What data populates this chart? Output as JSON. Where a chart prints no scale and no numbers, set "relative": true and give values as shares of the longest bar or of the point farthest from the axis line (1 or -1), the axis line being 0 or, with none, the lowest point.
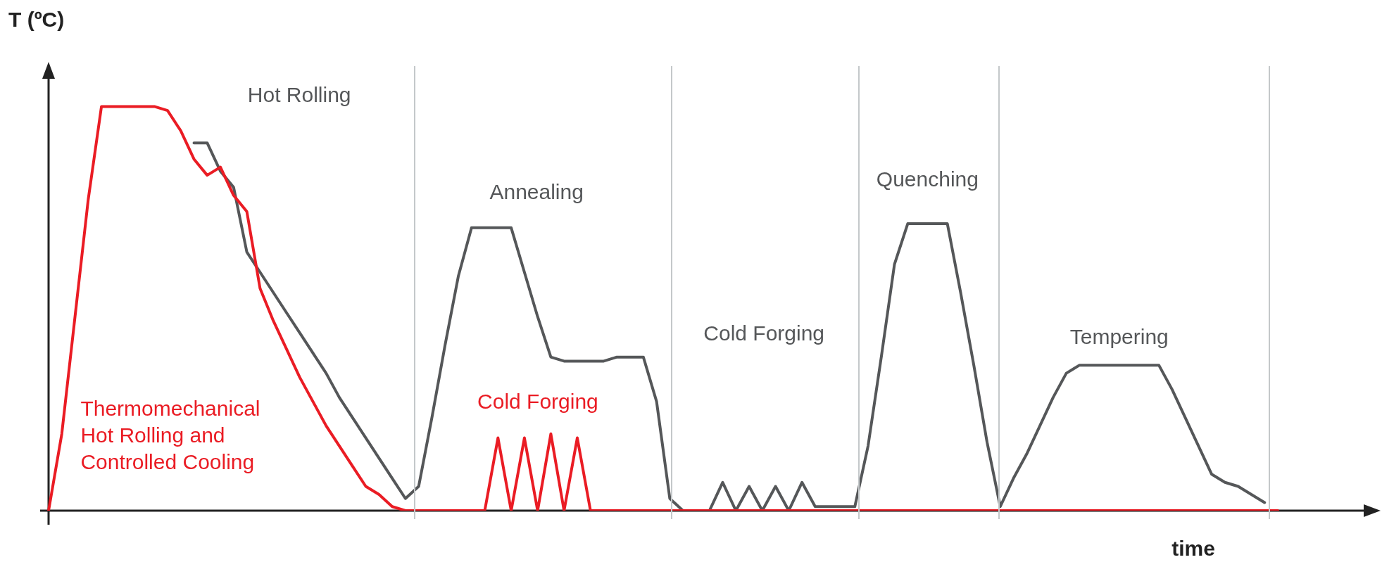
{
  "chart_data": {
    "type": "line",
    "relative": true,
    "xlabel": "time",
    "ylabel": "T (ºC)",
    "legend": false,
    "marker": "none",
    "line_style": "solid",
    "categories": [
      null,
      null,
      null,
      null,
      null,
      null,
      null,
      null,
      null,
      null,
      null,
      null,
      null,
      null,
      null,
      null,
      null,
      null,
      null,
      null,
      null,
      null,
      null,
      null,
      null,
      null,
      null,
      null,
      null,
      null,
      null,
      null,
      null,
      null,
      null,
      null,
      null,
      null,
      null,
      null,
      null,
      null,
      null,
      null,
      null,
      null,
      null,
      null,
      null,
      null,
      null,
      null,
      null,
      null,
      null,
      null,
      null,
      null,
      null,
      null,
      null,
      null,
      null,
      null,
      null,
      null,
      null,
      null,
      null,
      null,
      null,
      null,
      null,
      null,
      null,
      null,
      null,
      null,
      null,
      null,
      null,
      null,
      null,
      null,
      null,
      null,
      null,
      null,
      null,
      null,
      null,
      null,
      null,
      null
    ],
    "series": [
      {
        "color": "#555759",
        "values": [
          null,
          null,
          null,
          null,
          null,
          null,
          null,
          null,
          null,
          null,
          null,
          0.91,
          0.91,
          0.84,
          0.8,
          0.64,
          0.59,
          0.54,
          0.49,
          0.44,
          0.39,
          0.34,
          0.28,
          0.23,
          0.18,
          0.13,
          0.08,
          0.03,
          0.06,
          0.23,
          0.41,
          0.58,
          0.7,
          0.7,
          0.7,
          0.7,
          0.59,
          0.48,
          0.38,
          0.37,
          0.37,
          0.37,
          0.37,
          0.38,
          0.38,
          0.38,
          0.27,
          0.03,
          0,
          0,
          0,
          0.07,
          0,
          0.06,
          0,
          0.06,
          0,
          0.07,
          0.01,
          0.01,
          0.01,
          0.01,
          0.16,
          0.38,
          0.61,
          0.71,
          0.71,
          0.71,
          0.71,
          0.54,
          0.36,
          0.17,
          0.01,
          0.08,
          0.14,
          0.21,
          0.28,
          0.34,
          0.36,
          0.36,
          0.36,
          0.36,
          0.36,
          0.36,
          0.36,
          0.3,
          0.23,
          0.16,
          0.09,
          0.07,
          0.06,
          0.04,
          0.02,
          null
        ]
      },
      {
        "name": "Thermomechanical Hot Rolling and Controlled Cooling",
        "color": "#ea1c24",
        "values": [
          0,
          0.19,
          0.48,
          0.77,
          1,
          1,
          1,
          1,
          1,
          0.99,
          0.94,
          0.87,
          0.83,
          0.85,
          0.78,
          0.74,
          0.55,
          0.47,
          0.4,
          0.33,
          0.27,
          0.21,
          0.16,
          0.11,
          0.06,
          0.04,
          0.01,
          0,
          0,
          0,
          0,
          0,
          0,
          0,
          0.18,
          0,
          0.18,
          0,
          0.19,
          0,
          0.18,
          0,
          0,
          0,
          0,
          0,
          0,
          0,
          0,
          0,
          0,
          0,
          0,
          0,
          0,
          0,
          0,
          0,
          0,
          0,
          0,
          0,
          0,
          0,
          0,
          0,
          0,
          0,
          0,
          0,
          0,
          0,
          0,
          0,
          0,
          0,
          0,
          0,
          0,
          0,
          0,
          0,
          0,
          0,
          0,
          0,
          0,
          0,
          0,
          0,
          0,
          0,
          0,
          0
        ]
      }
    ],
    "annotations": [
      "Hot Rolling",
      "Annealing",
      "Cold Forging",
      "Quenching",
      "Tempering",
      "Cold Forging"
    ]
  }
}
